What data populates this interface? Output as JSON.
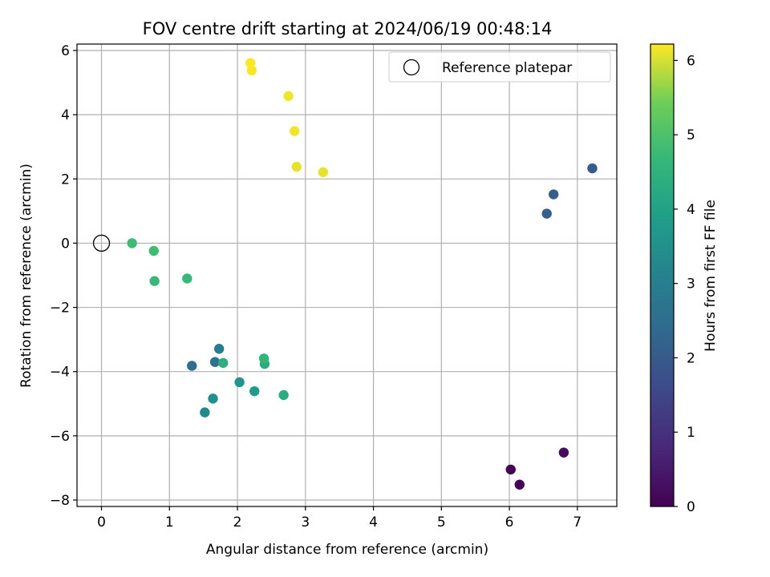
{
  "chart_data": {
    "type": "scatter",
    "title": "FOV centre drift starting at 2024/06/19 00:48:14",
    "xlabel": "Angular distance from reference (arcmin)",
    "ylabel": "Rotation from reference (arcmin)",
    "xlim": [
      -0.36,
      7.58
    ],
    "ylim": [
      -8.2,
      6.2
    ],
    "xticks": [
      0,
      1,
      2,
      3,
      4,
      5,
      6,
      7
    ],
    "yticks": [
      -8,
      -6,
      -4,
      -2,
      0,
      2,
      4,
      6
    ],
    "grid": true,
    "legend": {
      "position": "top-right",
      "entries": [
        "Reference platepar"
      ]
    },
    "reference_point": {
      "x": 0,
      "y": 0,
      "label": "Reference platepar"
    },
    "colorbar": {
      "label": "Hours from first FF file",
      "colormap": "viridis",
      "range": [
        0,
        6.22
      ],
      "ticks": [
        0,
        1,
        2,
        3,
        4,
        5,
        6
      ]
    },
    "points": [
      {
        "x": 6.02,
        "y": -7.05,
        "hours": 0.0
      },
      {
        "x": 6.15,
        "y": -7.52,
        "hours": 0.1
      },
      {
        "x": 6.8,
        "y": -6.52,
        "hours": 0.2
      },
      {
        "x": 7.22,
        "y": 2.33,
        "hours": 2.0
      },
      {
        "x": 6.65,
        "y": 1.52,
        "hours": 2.05
      },
      {
        "x": 6.55,
        "y": 0.92,
        "hours": 2.1
      },
      {
        "x": 1.33,
        "y": -3.82,
        "hours": 2.5
      },
      {
        "x": 1.67,
        "y": -3.7,
        "hours": 2.7
      },
      {
        "x": 1.73,
        "y": -3.29,
        "hours": 2.9
      },
      {
        "x": 1.52,
        "y": -5.27,
        "hours": 3.3
      },
      {
        "x": 1.64,
        "y": -4.84,
        "hours": 3.5
      },
      {
        "x": 2.03,
        "y": -4.33,
        "hours": 3.6
      },
      {
        "x": 2.25,
        "y": -4.61,
        "hours": 3.8
      },
      {
        "x": 2.68,
        "y": -4.73,
        "hours": 4.3
      },
      {
        "x": 2.4,
        "y": -3.76,
        "hours": 4.3
      },
      {
        "x": 1.79,
        "y": -3.73,
        "hours": 4.4
      },
      {
        "x": 2.39,
        "y": -3.59,
        "hours": 4.6
      },
      {
        "x": 1.26,
        "y": -1.1,
        "hours": 4.7
      },
      {
        "x": 0.78,
        "y": -1.18,
        "hours": 4.7
      },
      {
        "x": 0.77,
        "y": -0.24,
        "hours": 4.8
      },
      {
        "x": 0.45,
        "y": 0.0,
        "hours": 4.8
      },
      {
        "x": 3.26,
        "y": 2.21,
        "hours": 6.1
      },
      {
        "x": 2.87,
        "y": 2.38,
        "hours": 6.1
      },
      {
        "x": 2.84,
        "y": 3.49,
        "hours": 6.15
      },
      {
        "x": 2.75,
        "y": 4.58,
        "hours": 6.15
      },
      {
        "x": 2.21,
        "y": 5.38,
        "hours": 6.2
      },
      {
        "x": 2.19,
        "y": 5.61,
        "hours": 6.22
      }
    ]
  }
}
